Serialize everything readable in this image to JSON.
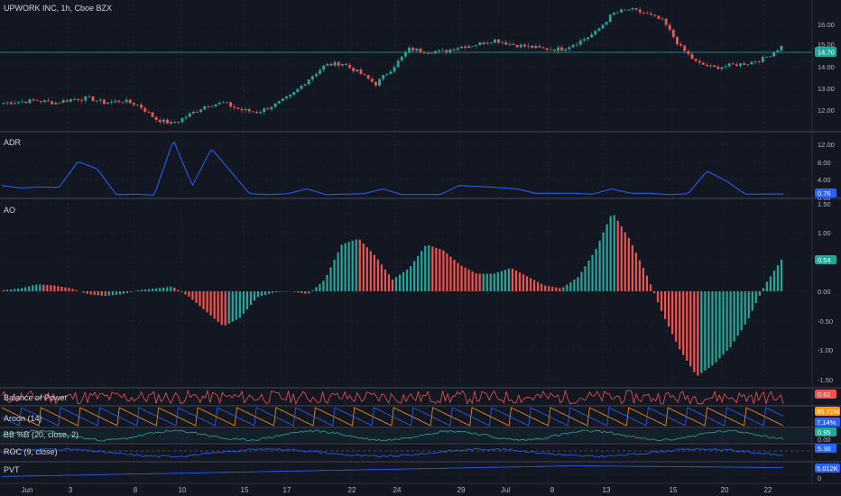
{
  "header": {
    "symbol_title": "UPWORK INC, 1h, Cboe BZX"
  },
  "x_axis": {
    "labels": [
      "Jun",
      "3",
      "8",
      "10",
      "15",
      "17",
      "22",
      "24",
      "29",
      "Jul",
      "8",
      "13",
      "15",
      "20",
      "22"
    ]
  },
  "panes": {
    "price": {
      "title": "UPWORK INC, 1h, Cboe BZX",
      "ticks": [
        "16.00",
        "15.00",
        "14.00",
        "13.00",
        "12.00"
      ],
      "last_value": "14.70",
      "last_color": "#26a69a"
    },
    "adr": {
      "title": "ADR",
      "ticks": [
        "12.00",
        "8.00",
        "4.00",
        "0.00"
      ],
      "last_value": "0.76",
      "last_color": "#2962ff"
    },
    "ao": {
      "title": "AO",
      "ticks": [
        "1.50",
        "1.00",
        "0.54",
        "0.00",
        "-0.50",
        "-1.00",
        "-1.50"
      ],
      "last_value": "0.54",
      "last_color": "#26a69a"
    },
    "bop": {
      "title": "Balance of Power",
      "last_value": "0.62",
      "last_color": "#ef5350"
    },
    "aroon": {
      "title": "Aroon (14)",
      "last_value_1": "85.71%",
      "last_color_1": "#ff9800",
      "last_value_2": "7.14%",
      "last_color_2": "#2962ff"
    },
    "bbb": {
      "title": "BB %B (20, close, 2)",
      "last_value": "0.95",
      "last_color": "#26a69a",
      "tick": "0.00"
    },
    "roc": {
      "title": "ROC (9, close)",
      "last_value": "5.38",
      "last_color": "#2962ff"
    },
    "pvt": {
      "title": "PVT",
      "last_value": "5.012K",
      "last_color": "#2962ff",
      "tick": "0"
    }
  },
  "colors": {
    "up": "#26a69a",
    "down": "#ef5350",
    "ao_up": "#26a69a",
    "ao_down": "#ef5350",
    "line_blue": "#2962ff",
    "orange": "#ff9800",
    "bg": "#131722",
    "grid": "#2a2e39"
  },
  "chart_data": [
    {
      "type": "candlestick",
      "title": "UPWORK INC, 1h, Cboe BZX",
      "ylim": [
        11.3,
        16.5
      ],
      "close_path_approx": [
        12.3,
        12.35,
        12.4,
        12.3,
        12.45,
        12.5,
        12.3,
        12.4,
        12.2,
        11.6,
        11.4,
        11.8,
        12.2,
        12.3,
        12.0,
        11.9,
        12.2,
        12.6,
        13.3,
        13.9,
        14.0,
        13.6,
        13.1,
        13.8,
        14.6,
        14.5,
        14.5,
        14.7,
        14.8,
        15.0,
        14.8,
        14.7,
        14.6,
        14.6,
        14.9,
        15.3,
        16.1,
        16.3,
        16.1,
        15.8,
        14.7,
        14.0,
        13.8,
        13.9,
        14.0,
        14.2,
        14.7
      ],
      "last_price": 14.7
    },
    {
      "type": "line",
      "title": "ADR",
      "ylim": [
        0,
        13
      ],
      "values_approx": [
        2.5,
        2.0,
        2.2,
        2.1,
        7.5,
        6.0,
        0.6,
        0.7,
        0.5,
        12.0,
        2.5,
        10.2,
        5.5,
        0.8,
        0.6,
        0.8,
        1.8,
        0.6,
        0.7,
        0.8,
        1.8,
        0.6,
        0.6,
        0.6,
        2.5,
        2.3,
        2.1,
        1.8,
        0.9,
        0.9,
        0.9,
        0.7,
        1.8,
        0.9,
        0.9,
        0.6,
        0.8,
        5.5,
        3.5,
        0.7,
        0.7,
        0.76
      ]
    },
    {
      "type": "bar",
      "title": "AO",
      "ylim": [
        -1.6,
        1.6
      ],
      "values_approx": [
        0.02,
        0.05,
        0.12,
        0.1,
        0.05,
        -0.05,
        -0.08,
        -0.05,
        0.02,
        0.05,
        0.08,
        -0.1,
        -0.35,
        -0.6,
        -0.45,
        -0.1,
        -0.02,
        0.0,
        -0.05,
        0.2,
        0.8,
        0.9,
        0.6,
        0.2,
        0.4,
        0.8,
        0.7,
        0.45,
        0.3,
        0.3,
        0.4,
        0.25,
        0.1,
        0.05,
        0.25,
        0.7,
        1.35,
        0.9,
        0.3,
        -0.4,
        -1.0,
        -1.45,
        -1.25,
        -0.95,
        -0.5,
        0.1,
        0.54
      ]
    }
  ]
}
